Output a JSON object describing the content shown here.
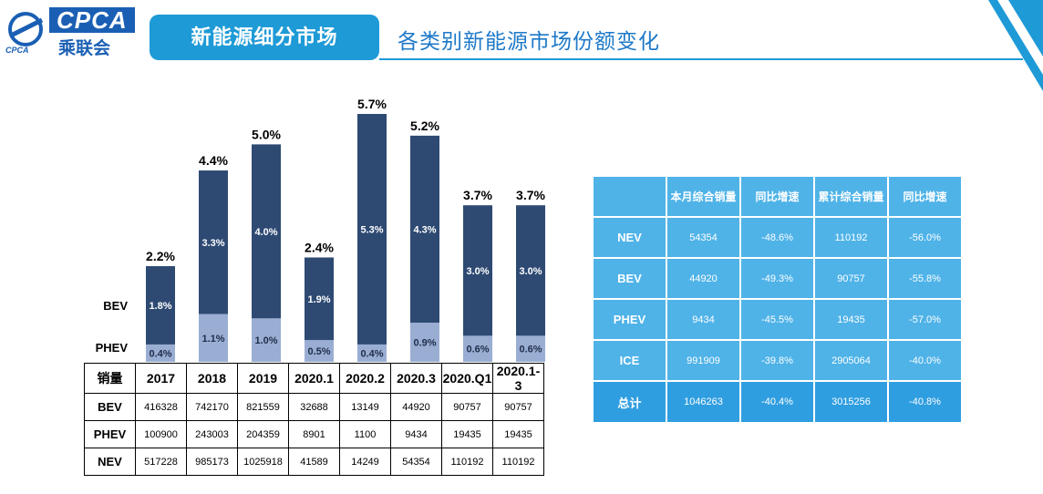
{
  "header": {
    "logo_text": "CPCA",
    "logo_cn": "乘联会",
    "logo_sub": "CPCA",
    "section_title": "新能源细分市场",
    "page_title": "各类别新能源市场份额变化",
    "colors": {
      "accent": "#1e9ad6",
      "brand": "#1a5fb4"
    }
  },
  "chart_data": {
    "type": "bar",
    "stacked": true,
    "categories": [
      "2017",
      "2018",
      "2019",
      "2020.1",
      "2020.2",
      "2020.3",
      "2020.Q1",
      "2020.1-3"
    ],
    "series": [
      {
        "name": "PHEV",
        "values": [
          0.4,
          1.1,
          1.0,
          0.5,
          0.4,
          0.9,
          0.6,
          0.6
        ],
        "color": "#9aaed3"
      },
      {
        "name": "BEV",
        "values": [
          1.8,
          3.3,
          4.0,
          1.9,
          5.3,
          4.3,
          3.0,
          3.0
        ],
        "color": "#2e4a73"
      }
    ],
    "totals": [
      2.2,
      4.4,
      5.0,
      2.4,
      5.7,
      5.2,
      3.7,
      3.7
    ],
    "units": "%",
    "ylim": [
      0,
      5.7
    ],
    "grid": false
  },
  "data_table": {
    "header_label": "销量",
    "columns": [
      "2017",
      "2018",
      "2019",
      "2020.1",
      "2020.2",
      "2020.3",
      "2020.Q1",
      "2020.1-3"
    ],
    "rows": [
      {
        "label": "BEV",
        "values": [
          "416328",
          "742170",
          "821559",
          "32688",
          "13149",
          "44920",
          "90757",
          "90757"
        ]
      },
      {
        "label": "PHEV",
        "values": [
          "100900",
          "243003",
          "204359",
          "8901",
          "1100",
          "9434",
          "19435",
          "19435"
        ]
      },
      {
        "label": "NEV",
        "values": [
          "517228",
          "985173",
          "1025918",
          "41589",
          "14249",
          "54354",
          "110192",
          "110192"
        ]
      }
    ]
  },
  "nev_table": {
    "headers": [
      "",
      "本月综合销量",
      "同比增速",
      "累计综合销量",
      "同比增速"
    ],
    "rows": [
      {
        "label": "NEV",
        "values": [
          "54354",
          "-48.6%",
          "110192",
          "-56.0%"
        ]
      },
      {
        "label": "BEV",
        "values": [
          "44920",
          "-49.3%",
          "90757",
          "-55.8%"
        ]
      },
      {
        "label": "PHEV",
        "values": [
          "9434",
          "-45.5%",
          "19435",
          "-57.0%"
        ]
      },
      {
        "label": "ICE",
        "values": [
          "991909",
          "-39.8%",
          "2905064",
          "-40.0%"
        ]
      },
      {
        "label": "总计",
        "values": [
          "1046263",
          "-40.4%",
          "3015256",
          "-40.8%"
        ]
      }
    ]
  }
}
